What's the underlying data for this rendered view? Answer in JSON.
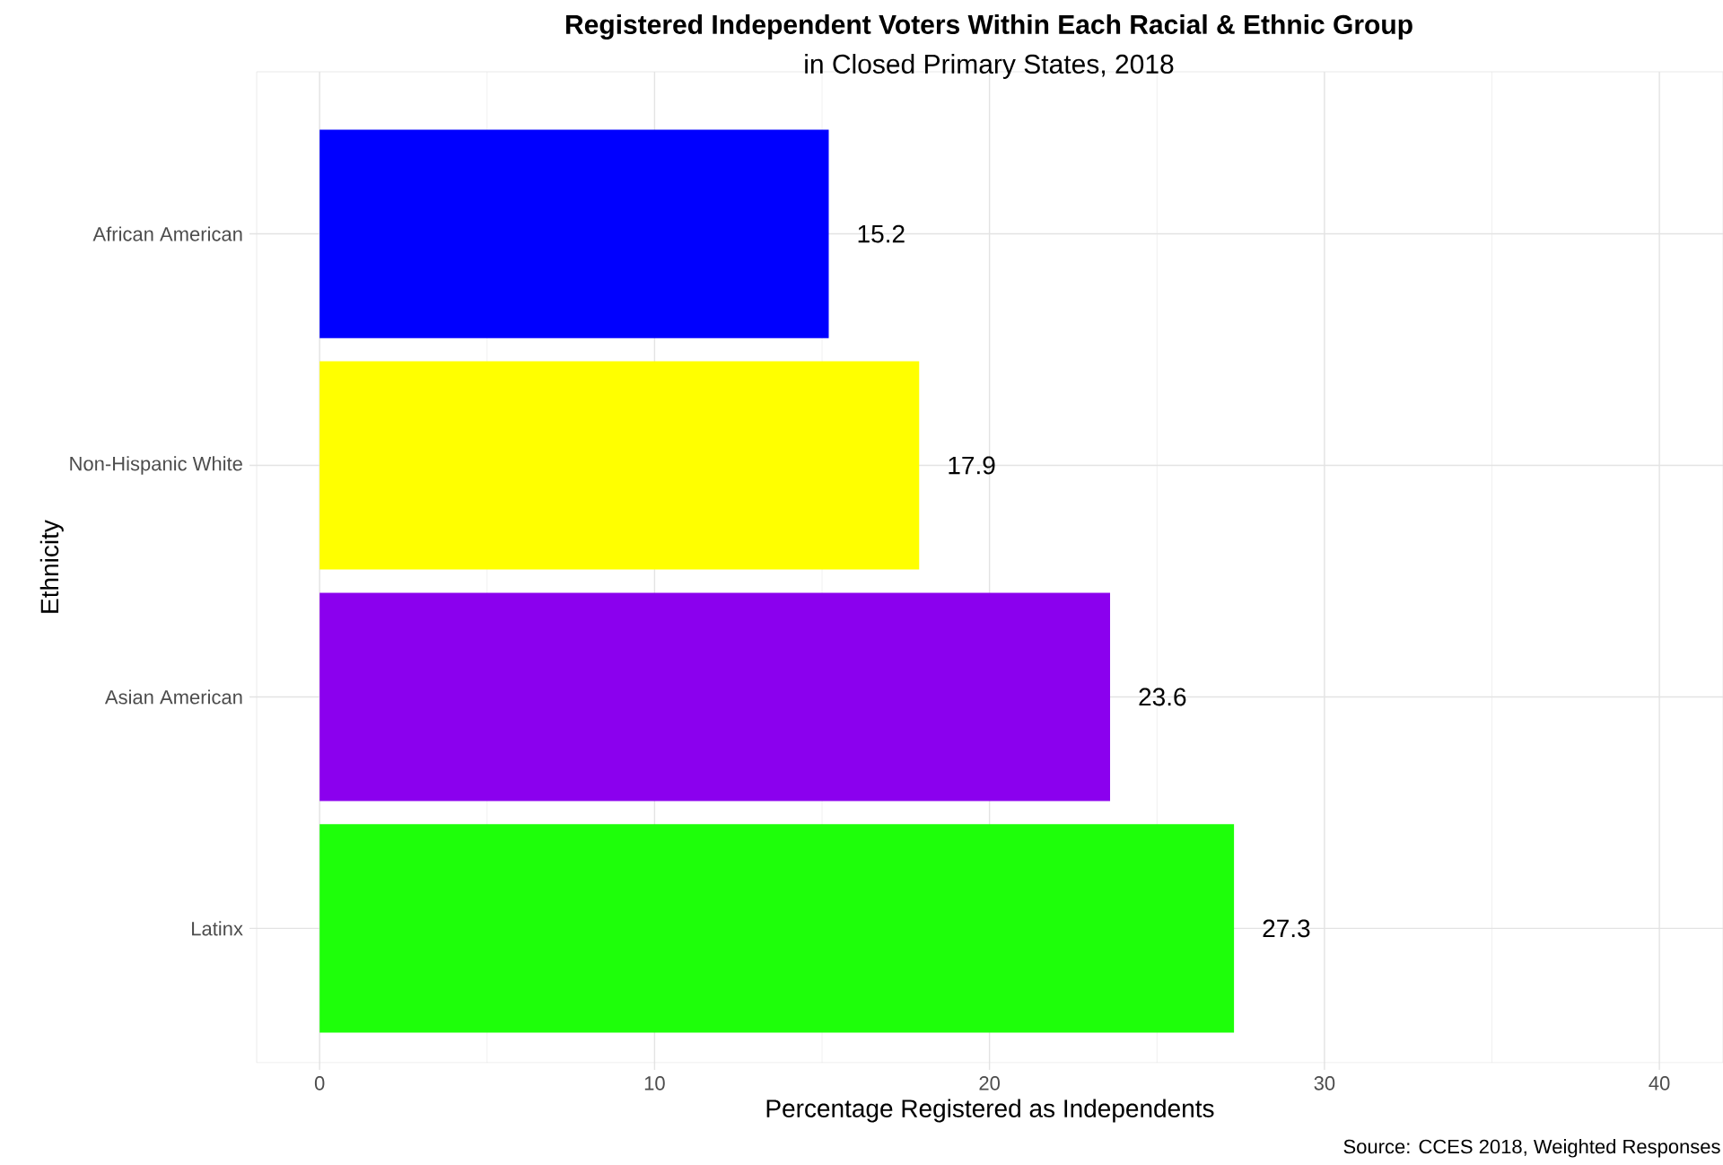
{
  "chart_data": {
    "type": "bar",
    "orientation": "horizontal",
    "title": "Registered Independent Voters Within Each Racial & Ethnic Group",
    "subtitle": "in Closed Primary States, 2018",
    "xlabel": "Percentage Registered as Independents",
    "ylabel": "Ethnicity",
    "categories": [
      "African American",
      "Non-Hispanic White",
      "Asian American",
      "Latinx"
    ],
    "values": [
      15.2,
      17.9,
      23.6,
      27.3
    ],
    "colors": [
      "#0000ff",
      "#ffff00",
      "#8b00ee",
      "#1eff0a"
    ],
    "value_labels": [
      "15.2",
      "17.9",
      "23.6",
      "27.3"
    ],
    "xlim": [
      -1.88,
      41.9
    ],
    "xticks": [
      0,
      10,
      20,
      30,
      40
    ],
    "grid": true,
    "annotations": [
      "Source: CCES 2018, Weighted Responses"
    ]
  }
}
